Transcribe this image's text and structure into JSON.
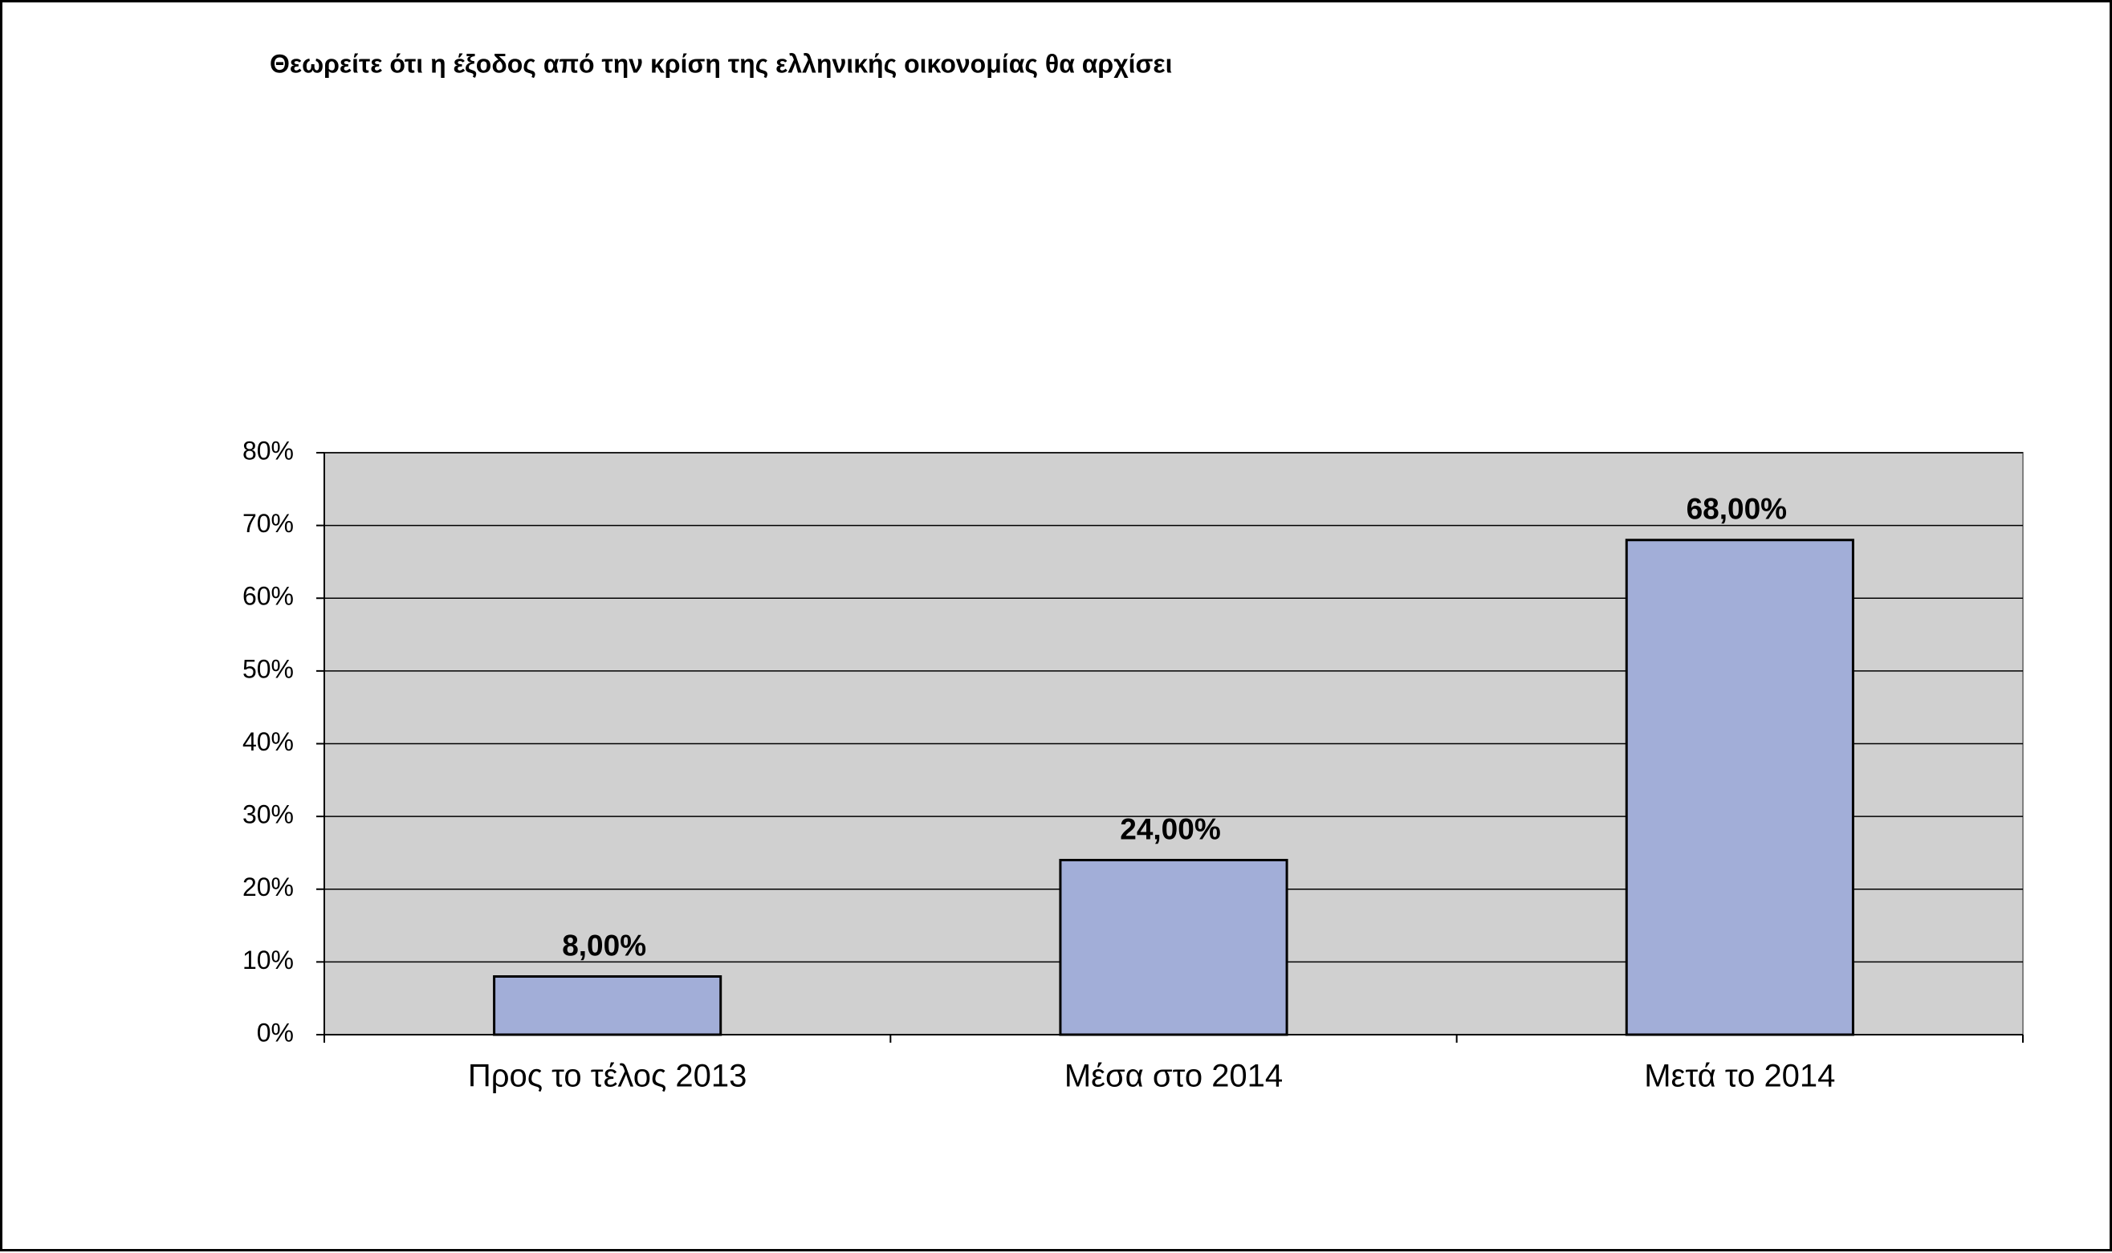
{
  "chart_data": {
    "type": "bar",
    "title": "Θεωρείτε ότι η έξοδος από την κρίση της ελληνικής οικονομίας θα αρχίσει",
    "categories": [
      "Προς το τέλος 2013",
      "Μέσα στο 2014",
      "Μετά το 2014"
    ],
    "values": [
      8,
      24,
      68
    ],
    "value_labels": [
      "8,00%",
      "24,00%",
      "68,00%"
    ],
    "color": "#a2aed8",
    "ylim": [
      0,
      80
    ],
    "yticks": [
      {
        "value": 0,
        "label": "0%"
      },
      {
        "value": 10,
        "label": "10%"
      },
      {
        "value": 20,
        "label": "20%"
      },
      {
        "value": 30,
        "label": "30%"
      },
      {
        "value": 40,
        "label": "40%"
      },
      {
        "value": 50,
        "label": "50%"
      },
      {
        "value": 60,
        "label": "60%"
      },
      {
        "value": 70,
        "label": "70%"
      },
      {
        "value": 80,
        "label": "80%"
      }
    ],
    "grid": true
  }
}
